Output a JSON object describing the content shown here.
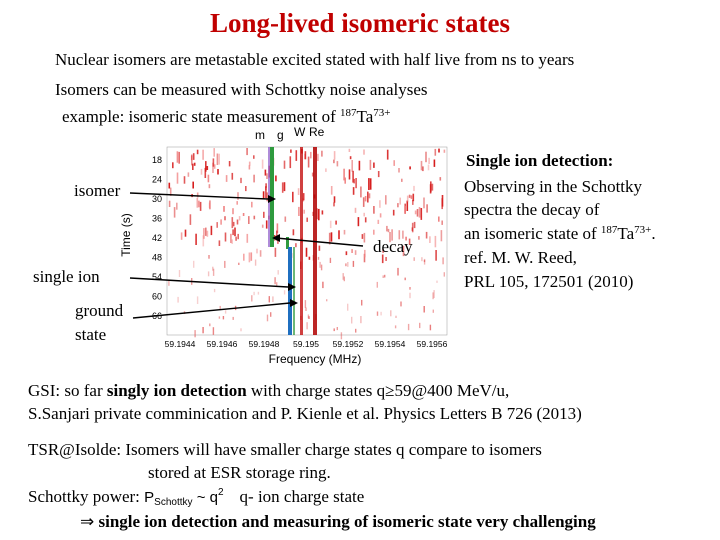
{
  "title": "Long-lived isomeric states",
  "intro": {
    "line1": "Nuclear isomers are metastable excited stated with half live from ns to years",
    "line2": "Isomers can be measured with Schottky noise analyses",
    "line3_prefix": "example: isomeric state measurement  of ",
    "line3_mass": "187",
    "line3_elem": "Ta",
    "line3_charge": "73+"
  },
  "figure": {
    "element_labels": [
      "m",
      "g",
      "W",
      "Re"
    ],
    "ylabel": "Time (s)",
    "y_ticks": [
      "18",
      "24",
      "30",
      "36",
      "42",
      "48",
      "54",
      "60",
      "66"
    ],
    "xlabel": "Frequency (MHz)",
    "x_ticks": [
      "59.1944",
      "59.1946",
      "59.1948",
      "59.195",
      "59.1952",
      "59.1954",
      "59.1956"
    ],
    "label_isomer": "isomer",
    "label_decay": "decay",
    "label_single_ion": "single ion",
    "label_ground_1": "ground",
    "label_ground_2": "state"
  },
  "side": {
    "heading": "Single ion detection:",
    "l1": "Observing in the Schottky",
    "l2": "spectra the decay of",
    "l3_prefix": " an isomeric state of ",
    "l3_mass": "187",
    "l3_elem": "Ta",
    "l3_charge": "73+",
    "l3_suffix": ".",
    "l4": "ref. M. W. Reed,",
    "l5": "PRL 105, 172501 (2010)"
  },
  "gsi": {
    "l1_a": "GSI: so far ",
    "l1_b": "singly ion detection",
    "l1_c": " with charge states q≥59@400 MeV/u,",
    "l2": " S.Sanjari  private comminication and P. Kienle et al. Physics Letters B 726 (2013)"
  },
  "tsr": {
    "l1": "TSR@Isolde:  Isomers will have smaller  charge states q  compare  to isomers",
    "l2": "stored at  ESR storage ring.",
    "l3_a": "Schottky power:  ",
    "formula_p": "P",
    "formula_sub": "Schottky",
    "formula_rest": " ~ q",
    "formula_exp": "2",
    "l3_b": "q- ion charge state",
    "arrow": "⇒",
    "l4": " single ion detection and measuring of isomeric state very challenging"
  },
  "colors": {
    "accent_red": "#c00000",
    "isomer_line": "#2e9a3e",
    "ground_line": "#1f6fc0"
  }
}
